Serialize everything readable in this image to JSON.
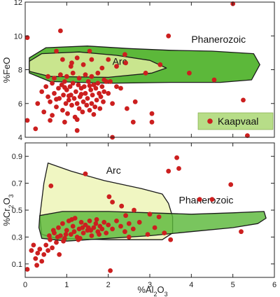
{
  "chart_data": [
    {
      "type": "scatter",
      "panel": "top",
      "xlabel": "",
      "ylabel": "%FeO",
      "xlim": [
        0,
        6
      ],
      "ylim": [
        4,
        12
      ],
      "y_ticks": [
        "4",
        "6",
        "8",
        "10",
        "12"
      ],
      "point_color": "#cc1f1f",
      "region_colors": {
        "phanerozoic": "#5cb83a",
        "arc": "#c9e58e"
      },
      "regions": [
        {
          "name": "Phanerozoic",
          "label": "Phanerozoic",
          "outline": [
            [
              0.1,
              8.7
            ],
            [
              0.5,
              9.3
            ],
            [
              1.5,
              9.4
            ],
            [
              2.5,
              9.25
            ],
            [
              3.5,
              9.15
            ],
            [
              4.5,
              9.1
            ],
            [
              5.5,
              8.95
            ],
            [
              5.65,
              8.3
            ],
            [
              5.45,
              7.4
            ],
            [
              4.7,
              7.25
            ],
            [
              3.5,
              7.25
            ],
            [
              2.0,
              7.2
            ],
            [
              0.6,
              7.3
            ],
            [
              0.1,
              7.8
            ]
          ]
        },
        {
          "name": "Arc",
          "label": "Arc",
          "outline": [
            [
              0.1,
              8.5
            ],
            [
              0.4,
              8.95
            ],
            [
              1.3,
              9.05
            ],
            [
              2.2,
              8.85
            ],
            [
              3.0,
              8.55
            ],
            [
              3.4,
              8.1
            ],
            [
              3.05,
              7.8
            ],
            [
              2.0,
              7.55
            ],
            [
              0.6,
              7.6
            ],
            [
              0.1,
              7.9
            ]
          ]
        }
      ],
      "legend": {
        "label": "Kaapvaal",
        "location": "bottom-right"
      },
      "points": [
        [
          0.05,
          9.9
        ],
        [
          0.85,
          10.3
        ],
        [
          0.75,
          9.1
        ],
        [
          1.1,
          8.2
        ],
        [
          1.55,
          9.1
        ],
        [
          2.4,
          8.9
        ],
        [
          2.42,
          8.4
        ],
        [
          2.9,
          7.8
        ],
        [
          3.25,
          8.3
        ],
        [
          3.45,
          10.0
        ],
        [
          3.95,
          7.8
        ],
        [
          5.0,
          11.9
        ],
        [
          4.55,
          7.4
        ],
        [
          5.25,
          6.2
        ],
        [
          5.35,
          4.1
        ],
        [
          2.1,
          4.0
        ],
        [
          0.05,
          5.0
        ],
        [
          0.25,
          4.5
        ],
        [
          0.95,
          4.9
        ],
        [
          1.25,
          4.4
        ],
        [
          2.45,
          5.7
        ],
        [
          2.6,
          4.9
        ],
        [
          2.65,
          6.1
        ],
        [
          3.05,
          4.9
        ],
        [
          3.05,
          5.4
        ],
        [
          2.3,
          6.9
        ],
        [
          2.05,
          7.3
        ],
        [
          0.4,
          6.7
        ],
        [
          0.5,
          7.0
        ],
        [
          0.55,
          6.4
        ],
        [
          0.6,
          6.1
        ],
        [
          0.65,
          7.2
        ],
        [
          0.7,
          6.6
        ],
        [
          0.75,
          5.8
        ],
        [
          0.8,
          6.9
        ],
        [
          0.82,
          6.3
        ],
        [
          0.88,
          7.1
        ],
        [
          0.9,
          5.6
        ],
        [
          0.92,
          6.5
        ],
        [
          0.95,
          7.3
        ],
        [
          0.98,
          6.0
        ],
        [
          1.0,
          6.8
        ],
        [
          1.02,
          5.4
        ],
        [
          1.05,
          6.2
        ],
        [
          1.08,
          7.0
        ],
        [
          1.1,
          6.5
        ],
        [
          1.12,
          5.9
        ],
        [
          1.15,
          7.2
        ],
        [
          1.18,
          6.3
        ],
        [
          1.2,
          5.2
        ],
        [
          1.22,
          6.7
        ],
        [
          1.25,
          6.0
        ],
        [
          1.28,
          7.1
        ],
        [
          1.3,
          5.7
        ],
        [
          1.32,
          6.4
        ],
        [
          1.35,
          6.9
        ],
        [
          1.38,
          5.5
        ],
        [
          1.4,
          6.1
        ],
        [
          1.42,
          7.0
        ],
        [
          1.45,
          6.6
        ],
        [
          1.48,
          5.9
        ],
        [
          1.5,
          6.3
        ],
        [
          1.52,
          7.3
        ],
        [
          1.55,
          5.6
        ],
        [
          1.58,
          6.8
        ],
        [
          1.6,
          6.0
        ],
        [
          1.62,
          6.5
        ],
        [
          1.65,
          7.1
        ],
        [
          1.68,
          5.8
        ],
        [
          1.7,
          6.9
        ],
        [
          1.72,
          6.2
        ],
        [
          1.75,
          7.2
        ],
        [
          1.78,
          6.6
        ],
        [
          1.8,
          5.7
        ],
        [
          1.82,
          6.4
        ],
        [
          1.85,
          7.0
        ],
        [
          1.88,
          6.1
        ],
        [
          1.9,
          6.7
        ],
        [
          1.95,
          7.3
        ],
        [
          0.3,
          6.0
        ],
        [
          0.45,
          5.5
        ],
        [
          0.6,
          5.0
        ],
        [
          0.7,
          7.5
        ],
        [
          1.0,
          7.6
        ],
        [
          1.3,
          7.5
        ],
        [
          1.6,
          7.6
        ],
        [
          1.9,
          7.4
        ],
        [
          2.0,
          6.6
        ],
        [
          2.1,
          6.0
        ],
        [
          2.2,
          7.0
        ],
        [
          0.55,
          7.6
        ],
        [
          0.85,
          7.7
        ],
        [
          1.15,
          7.8
        ],
        [
          1.45,
          7.7
        ],
        [
          1.75,
          7.8
        ],
        [
          1.12,
          8.4
        ],
        [
          1.4,
          8.3
        ],
        [
          0.9,
          8.6
        ],
        [
          1.25,
          8.7
        ],
        [
          1.6,
          8.6
        ],
        [
          2.0,
          8.6
        ],
        [
          2.2,
          8.2
        ],
        [
          1.85,
          8.1
        ],
        [
          1.35,
          6.55
        ],
        [
          1.05,
          6.45
        ],
        [
          0.75,
          6.25
        ],
        [
          0.95,
          6.95
        ],
        [
          1.55,
          7.05
        ],
        [
          1.25,
          5.05
        ],
        [
          1.65,
          5.35
        ],
        [
          0.65,
          5.3
        ]
      ]
    },
    {
      "type": "scatter",
      "panel": "bottom",
      "xlabel": "%Al2O3",
      "ylabel": "%Cr2O3",
      "xlim": [
        0,
        6
      ],
      "ylim": [
        0,
        1
      ],
      "x_ticks": [
        "0",
        "1",
        "2",
        "3",
        "4",
        "5",
        "6"
      ],
      "y_ticks": [
        "0.1",
        "0.3",
        "0.5",
        "0.7",
        "0.9"
      ],
      "point_color": "#cc1f1f",
      "region_colors": {
        "phanerozoic": "#5cb83a",
        "arc": "#f0f6c2"
      },
      "regions": [
        {
          "name": "Arc",
          "label": "Arc",
          "outline": [
            [
              0.55,
              0.85
            ],
            [
              1.1,
              0.79
            ],
            [
              1.9,
              0.72
            ],
            [
              2.8,
              0.66
            ],
            [
              3.3,
              0.62
            ],
            [
              3.45,
              0.55
            ],
            [
              3.55,
              0.45
            ],
            [
              3.55,
              0.33
            ],
            [
              3.3,
              0.28
            ],
            [
              2.0,
              0.28
            ],
            [
              0.75,
              0.29
            ],
            [
              0.4,
              0.32
            ],
            [
              0.35,
              0.45
            ],
            [
              0.45,
              0.7
            ]
          ]
        },
        {
          "name": "Phanerozoic",
          "label": "Phanerozoic",
          "outline": [
            [
              0.35,
              0.46
            ],
            [
              0.9,
              0.49
            ],
            [
              2.0,
              0.49
            ],
            [
              3.0,
              0.48
            ],
            [
              4.0,
              0.47
            ],
            [
              5.0,
              0.48
            ],
            [
              5.75,
              0.49
            ],
            [
              5.8,
              0.44
            ],
            [
              5.6,
              0.4
            ],
            [
              5.0,
              0.37
            ],
            [
              4.0,
              0.34
            ],
            [
              3.0,
              0.31
            ],
            [
              2.0,
              0.29
            ],
            [
              1.0,
              0.27
            ],
            [
              0.4,
              0.29
            ],
            [
              0.33,
              0.37
            ]
          ]
        }
      ],
      "points": [
        [
          0.05,
          0.06
        ],
        [
          0.15,
          0.2
        ],
        [
          0.25,
          0.14
        ],
        [
          0.35,
          0.21
        ],
        [
          0.45,
          0.17
        ],
        [
          0.5,
          0.24
        ],
        [
          0.55,
          0.2
        ],
        [
          0.6,
          0.28
        ],
        [
          0.65,
          0.22
        ],
        [
          0.7,
          0.33
        ],
        [
          0.75,
          0.26
        ],
        [
          0.8,
          0.37
        ],
        [
          0.85,
          0.31
        ],
        [
          0.9,
          0.4
        ],
        [
          0.95,
          0.29
        ],
        [
          1.0,
          0.35
        ],
        [
          1.05,
          0.42
        ],
        [
          1.1,
          0.32
        ],
        [
          1.15,
          0.38
        ],
        [
          1.2,
          0.44
        ],
        [
          1.25,
          0.3
        ],
        [
          1.3,
          0.36
        ],
        [
          1.35,
          0.41
        ],
        [
          1.4,
          0.33
        ],
        [
          1.45,
          0.39
        ],
        [
          1.5,
          0.35
        ],
        [
          1.55,
          0.42
        ],
        [
          1.6,
          0.31
        ],
        [
          1.65,
          0.37
        ],
        [
          1.7,
          0.4
        ],
        [
          1.75,
          0.34
        ],
        [
          1.8,
          0.38
        ],
        [
          1.85,
          0.36
        ],
        [
          1.9,
          0.41
        ],
        [
          1.95,
          0.33
        ],
        [
          2.0,
          0.39
        ],
        [
          0.3,
          0.18
        ],
        [
          0.4,
          0.12
        ],
        [
          0.2,
          0.24
        ],
        [
          0.68,
          0.35
        ],
        [
          0.92,
          0.27
        ],
        [
          1.12,
          0.43
        ],
        [
          1.32,
          0.29
        ],
        [
          1.52,
          0.37
        ],
        [
          1.72,
          0.43
        ],
        [
          0.58,
          0.31
        ],
        [
          0.78,
          0.3
        ],
        [
          0.98,
          0.32
        ],
        [
          1.18,
          0.34
        ],
        [
          1.38,
          0.37
        ],
        [
          1.58,
          0.35
        ],
        [
          1.78,
          0.32
        ],
        [
          2.1,
          0.36
        ],
        [
          2.2,
          0.42
        ],
        [
          2.3,
          0.38
        ],
        [
          2.4,
          0.34
        ],
        [
          2.5,
          0.4
        ],
        [
          2.6,
          0.36
        ],
        [
          2.75,
          0.41
        ],
        [
          0.62,
          0.68
        ],
        [
          1.45,
          0.77
        ],
        [
          2.02,
          0.6
        ],
        [
          2.1,
          0.56
        ],
        [
          2.32,
          0.53
        ],
        [
          2.42,
          0.46
        ],
        [
          2.5,
          0.3
        ],
        [
          2.62,
          0.5
        ],
        [
          2.95,
          0.32
        ],
        [
          3.0,
          0.47
        ],
        [
          3.12,
          0.37
        ],
        [
          3.22,
          0.45
        ],
        [
          3.35,
          0.33
        ],
        [
          3.5,
          0.28
        ],
        [
          3.45,
          0.79
        ],
        [
          3.65,
          0.89
        ],
        [
          3.7,
          0.81
        ],
        [
          4.2,
          0.58
        ],
        [
          4.5,
          0.58
        ],
        [
          4.95,
          0.69
        ],
        [
          5.2,
          0.34
        ],
        [
          2.05,
          0.05
        ],
        [
          0.82,
          0.17
        ],
        [
          0.28,
          0.09
        ],
        [
          1.28,
          0.28
        ]
      ]
    }
  ]
}
